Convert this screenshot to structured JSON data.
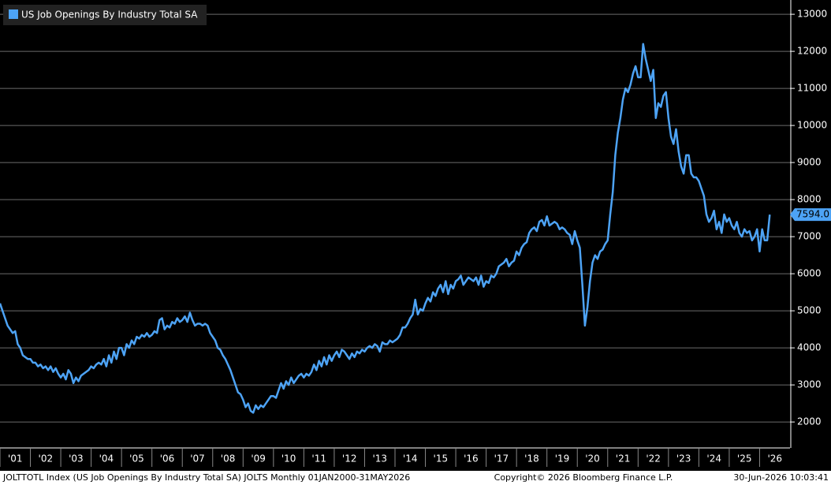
{
  "chart_data": {
    "type": "line",
    "title": "US Job Openings By Industry Total SA",
    "x": [
      "2001-01",
      "2001-02",
      "2001-03",
      "2001-04",
      "2001-05",
      "2001-06",
      "2001-07",
      "2001-08",
      "2001-09",
      "2001-10",
      "2001-11",
      "2001-12",
      "2002-01",
      "2002-02",
      "2002-03",
      "2002-04",
      "2002-05",
      "2002-06",
      "2002-07",
      "2002-08",
      "2002-09",
      "2002-10",
      "2002-11",
      "2002-12",
      "2003-01",
      "2003-02",
      "2003-03",
      "2003-04",
      "2003-05",
      "2003-06",
      "2003-07",
      "2003-08",
      "2003-09",
      "2003-10",
      "2003-11",
      "2003-12",
      "2004-01",
      "2004-02",
      "2004-03",
      "2004-04",
      "2004-05",
      "2004-06",
      "2004-07",
      "2004-08",
      "2004-09",
      "2004-10",
      "2004-11",
      "2004-12",
      "2005-01",
      "2005-02",
      "2005-03",
      "2005-04",
      "2005-05",
      "2005-06",
      "2005-07",
      "2005-08",
      "2005-09",
      "2005-10",
      "2005-11",
      "2005-12",
      "2006-01",
      "2006-02",
      "2006-03",
      "2006-04",
      "2006-05",
      "2006-06",
      "2006-07",
      "2006-08",
      "2006-09",
      "2006-10",
      "2006-11",
      "2006-12",
      "2007-01",
      "2007-02",
      "2007-03",
      "2007-04",
      "2007-05",
      "2007-06",
      "2007-07",
      "2007-08",
      "2007-09",
      "2007-10",
      "2007-11",
      "2007-12",
      "2008-01",
      "2008-02",
      "2008-03",
      "2008-04",
      "2008-05",
      "2008-06",
      "2008-07",
      "2008-08",
      "2008-09",
      "2008-10",
      "2008-11",
      "2008-12",
      "2009-01",
      "2009-02",
      "2009-03",
      "2009-04",
      "2009-05",
      "2009-06",
      "2009-07",
      "2009-08",
      "2009-09",
      "2009-10",
      "2009-11",
      "2009-12",
      "2010-01",
      "2010-02",
      "2010-03",
      "2010-04",
      "2010-05",
      "2010-06",
      "2010-07",
      "2010-08",
      "2010-09",
      "2010-10",
      "2010-11",
      "2010-12",
      "2011-01",
      "2011-02",
      "2011-03",
      "2011-04",
      "2011-05",
      "2011-06",
      "2011-07",
      "2011-08",
      "2011-09",
      "2011-10",
      "2011-11",
      "2011-12",
      "2012-01",
      "2012-02",
      "2012-03",
      "2012-04",
      "2012-05",
      "2012-06",
      "2012-07",
      "2012-08",
      "2012-09",
      "2012-10",
      "2012-11",
      "2012-12",
      "2013-01",
      "2013-02",
      "2013-03",
      "2013-04",
      "2013-05",
      "2013-06",
      "2013-07",
      "2013-08",
      "2013-09",
      "2013-10",
      "2013-11",
      "2013-12",
      "2014-01",
      "2014-02",
      "2014-03",
      "2014-04",
      "2014-05",
      "2014-06",
      "2014-07",
      "2014-08",
      "2014-09",
      "2014-10",
      "2014-11",
      "2014-12",
      "2015-01",
      "2015-02",
      "2015-03",
      "2015-04",
      "2015-05",
      "2015-06",
      "2015-07",
      "2015-08",
      "2015-09",
      "2015-10",
      "2015-11",
      "2015-12",
      "2016-01",
      "2016-02",
      "2016-03",
      "2016-04",
      "2016-05",
      "2016-06",
      "2016-07",
      "2016-08",
      "2016-09",
      "2016-10",
      "2016-11",
      "2016-12",
      "2017-01",
      "2017-02",
      "2017-03",
      "2017-04",
      "2017-05",
      "2017-06",
      "2017-07",
      "2017-08",
      "2017-09",
      "2017-10",
      "2017-11",
      "2017-12",
      "2018-01",
      "2018-02",
      "2018-03",
      "2018-04",
      "2018-05",
      "2018-06",
      "2018-07",
      "2018-08",
      "2018-09",
      "2018-10",
      "2018-11",
      "2018-12",
      "2019-01",
      "2019-02",
      "2019-03",
      "2019-04",
      "2019-05",
      "2019-06",
      "2019-07",
      "2019-08",
      "2019-09",
      "2019-10",
      "2019-11",
      "2019-12",
      "2020-01",
      "2020-02",
      "2020-03",
      "2020-04",
      "2020-05",
      "2020-06",
      "2020-07",
      "2020-08",
      "2020-09",
      "2020-10",
      "2020-11",
      "2020-12",
      "2021-01",
      "2021-02",
      "2021-03",
      "2021-04",
      "2021-05",
      "2021-06",
      "2021-07",
      "2021-08",
      "2021-09",
      "2021-10",
      "2021-11",
      "2021-12",
      "2022-01",
      "2022-02",
      "2022-03",
      "2022-04",
      "2022-05",
      "2022-06",
      "2022-07",
      "2022-08",
      "2022-09",
      "2022-10",
      "2022-11",
      "2022-12",
      "2023-01",
      "2023-02",
      "2023-03",
      "2023-04",
      "2023-05",
      "2023-06",
      "2023-07",
      "2023-08",
      "2023-09",
      "2023-10",
      "2023-11",
      "2023-12",
      "2024-01",
      "2024-02",
      "2024-03",
      "2024-04",
      "2024-05",
      "2024-06",
      "2024-07",
      "2024-08",
      "2024-09",
      "2024-10",
      "2024-11",
      "2024-12",
      "2025-01",
      "2025-02",
      "2025-03",
      "2025-04",
      "2025-05",
      "2025-06",
      "2025-07",
      "2025-08",
      "2025-09",
      "2025-10",
      "2025-11",
      "2025-12",
      "2026-01",
      "2026-02",
      "2026-03",
      "2026-04",
      "2026-05"
    ],
    "series": [
      {
        "name": "US Job Openings By Industry Total SA",
        "color": "#4da3f5",
        "values": [
          5200,
          5000,
          4800,
          4600,
          4500,
          4400,
          4450,
          4100,
          4000,
          3800,
          3750,
          3700,
          3700,
          3600,
          3600,
          3500,
          3550,
          3450,
          3500,
          3400,
          3500,
          3350,
          3450,
          3300,
          3200,
          3300,
          3150,
          3400,
          3300,
          3050,
          3200,
          3100,
          3250,
          3300,
          3350,
          3400,
          3500,
          3450,
          3550,
          3600,
          3550,
          3700,
          3500,
          3800,
          3600,
          3900,
          3700,
          4000,
          4000,
          3800,
          4100,
          4000,
          4200,
          4100,
          4300,
          4250,
          4350,
          4300,
          4400,
          4300,
          4350,
          4450,
          4400,
          4750,
          4800,
          4500,
          4600,
          4550,
          4700,
          4650,
          4800,
          4700,
          4750,
          4850,
          4700,
          4950,
          4750,
          4600,
          4650,
          4650,
          4600,
          4650,
          4600,
          4400,
          4300,
          4200,
          4000,
          3950,
          3800,
          3700,
          3550,
          3400,
          3200,
          3000,
          2800,
          2750,
          2600,
          2400,
          2500,
          2300,
          2250,
          2450,
          2350,
          2450,
          2400,
          2500,
          2600,
          2700,
          2700,
          2650,
          2850,
          3050,
          2900,
          3100,
          3000,
          3200,
          3050,
          3150,
          3250,
          3300,
          3200,
          3300,
          3250,
          3350,
          3550,
          3400,
          3650,
          3500,
          3750,
          3550,
          3800,
          3650,
          3800,
          3900,
          3750,
          3950,
          3900,
          3800,
          3700,
          3850,
          3750,
          3900,
          3850,
          3950,
          3900,
          4000,
          4050,
          4000,
          4100,
          4050,
          3900,
          4150,
          4100,
          4100,
          4200,
          4150,
          4200,
          4250,
          4350,
          4550,
          4550,
          4650,
          4800,
          4900,
          5300,
          4900,
          5050,
          5000,
          5200,
          5350,
          5250,
          5500,
          5400,
          5600,
          5700,
          5500,
          5800,
          5450,
          5700,
          5600,
          5800,
          5850,
          5950,
          5700,
          5800,
          5900,
          5850,
          5800,
          5900,
          5700,
          5950,
          5650,
          5800,
          5750,
          5950,
          5900,
          6000,
          6200,
          6250,
          6300,
          6400,
          6200,
          6300,
          6350,
          6600,
          6500,
          6700,
          6800,
          6850,
          7100,
          7200,
          7250,
          7150,
          7400,
          7450,
          7300,
          7550,
          7300,
          7350,
          7400,
          7350,
          7200,
          7250,
          7200,
          7100,
          7050,
          6800,
          7150,
          6900,
          6700,
          5700,
          4600,
          5100,
          5800,
          6300,
          6500,
          6400,
          6600,
          6650,
          6800,
          6900,
          7600,
          8200,
          9200,
          9800,
          10200,
          10700,
          11000,
          10900,
          11100,
          11400,
          11600,
          11300,
          11300,
          12200,
          11800,
          11500,
          11200,
          11500,
          10200,
          10600,
          10500,
          10800,
          10900,
          10200,
          9700,
          9500,
          9900,
          9300,
          8900,
          8700,
          9200,
          9200,
          8700,
          8600,
          8600,
          8500,
          8300,
          8100,
          7600,
          7400,
          7500,
          7700,
          7200,
          7400,
          7100,
          7600,
          7400,
          7500,
          7300,
          7200,
          7400,
          7100,
          7000,
          7200,
          7100,
          7150,
          6900,
          7000,
          7200,
          6600,
          7200,
          6900,
          6900,
          7594
        ]
      }
    ],
    "last_value_label": {
      "value": 7594,
      "label": "7594.0"
    },
    "ylim": [
      1300,
      13300
    ],
    "yticks": [
      2000,
      3000,
      4000,
      5000,
      6000,
      7000,
      8000,
      9000,
      10000,
      11000,
      12000,
      13000
    ],
    "xlim": [
      "2001-01",
      "2026-12"
    ],
    "xticks": [
      {
        "value": "2001",
        "label": "'01"
      },
      {
        "value": "2002",
        "label": "'02"
      },
      {
        "value": "2003",
        "label": "'03"
      },
      {
        "value": "2004",
        "label": "'04"
      },
      {
        "value": "2005",
        "label": "'05"
      },
      {
        "value": "2006",
        "label": "'06"
      },
      {
        "value": "2007",
        "label": "'07"
      },
      {
        "value": "2008",
        "label": "'08"
      },
      {
        "value": "2009",
        "label": "'09"
      },
      {
        "value": "2010",
        "label": "'10"
      },
      {
        "value": "2011",
        "label": "'11"
      },
      {
        "value": "2012",
        "label": "'12"
      },
      {
        "value": "2013",
        "label": "'13"
      },
      {
        "value": "2014",
        "label": "'14"
      },
      {
        "value": "2015",
        "label": "'15"
      },
      {
        "value": "2016",
        "label": "'16"
      },
      {
        "value": "2017",
        "label": "'17"
      },
      {
        "value": "2018",
        "label": "'18"
      },
      {
        "value": "2019",
        "label": "'19"
      },
      {
        "value": "2020",
        "label": "'20"
      },
      {
        "value": "2021",
        "label": "'21"
      },
      {
        "value": "2022",
        "label": "'22"
      },
      {
        "value": "2023",
        "label": "'23"
      },
      {
        "value": "2024",
        "label": "'24"
      },
      {
        "value": "2025",
        "label": "'25"
      },
      {
        "value": "2026",
        "label": "'26"
      }
    ],
    "grid": true,
    "legend": "top-left",
    "footer": {
      "left": "JOLTTOTL Index (US Job Openings By Industry Total SA) JOLTS Monthly 01JAN2000-31MAY2026",
      "center": "Copyright© 2026 Bloomberg Finance L.P.",
      "right": "30-Jun-2026 10:03:41"
    }
  }
}
